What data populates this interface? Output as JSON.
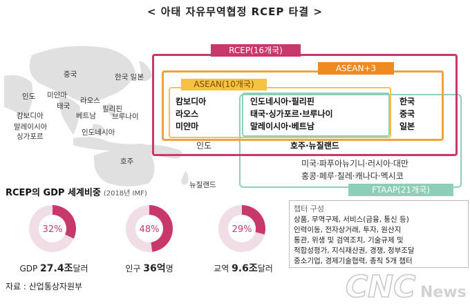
{
  "title": "< 아태 자유무역협정 RCEP 타결 >",
  "map_labels": {
    "china": "중국",
    "korea_japan": "한국 일본",
    "india": "인도",
    "myanmar": "미얀마",
    "laos": "라오스",
    "thailand": "태국",
    "philippines": "필리핀",
    "vietnam": "베트남",
    "brunei": "브루나이",
    "cambodia": "캄보디아",
    "malaysia": "말레이시아",
    "singapore": "싱가포르",
    "indonesia": "인도네시아",
    "australia": "호주",
    "new_zealand": "뉴질랜드"
  },
  "groups": {
    "rcep_label": "RCEP(16개국)",
    "asean3_label": "ASEAN+3",
    "asean_label": "ASEAN(10개국)",
    "ftaap_label": "FTAAP(21개국)"
  },
  "members": {
    "asean_left": [
      "캄보디아",
      "라오스",
      "미얀마"
    ],
    "asean_ftaap": [
      "인도네시아·필리핀",
      "태국·싱가포르·브루나이",
      "말레이시아·베트남"
    ],
    "plus3": [
      "한국",
      "중국",
      "일본"
    ],
    "india": "인도",
    "aus_nz": "호주·뉴질랜드",
    "ftaap_only": [
      "미국·파푸아뉴기니·러시아·대만",
      "홍콩·페루·칠레·캐나다·멕시코"
    ]
  },
  "gdp_section": {
    "title": "RCEP의 GDP 세계비중",
    "year_note": "(2018년 IMF)"
  },
  "donuts": [
    {
      "percent": 32,
      "label": "32%",
      "caption_prefix": "GDP ",
      "caption_value": "27.4조",
      "caption_suffix": "달러"
    },
    {
      "percent": 48,
      "label": "48%",
      "caption_prefix": "인구 ",
      "caption_value": "36억",
      "caption_suffix": "명"
    },
    {
      "percent": 29,
      "label": "29%",
      "caption_prefix": "교역 ",
      "caption_value": "9.6조",
      "caption_suffix": "달러"
    }
  ],
  "chapter": {
    "title": "챕터 구성",
    "lines": [
      "상품, 무역구제, 서비스(금융, 통신 등)",
      "인력이동, 전자상거래, 투자, 원산지",
      "통관, 위생 및 검역조치, 기술규제 및",
      "적합성평가, 지식재산권, 경쟁, 정부조달",
      "중소기업, 경제기술협력, 총칙 5개 챕터"
    ]
  },
  "source": "자료 : 산업통상자원부",
  "watermark": {
    "main": "CNC",
    "sub": "News"
  },
  "colors": {
    "rcep": "#c8386a",
    "asean3": "#ee8a1f",
    "asean": "#f5c242",
    "ftaap": "#8ccfb6",
    "donut_fill": "#c8386a",
    "donut_rest": "#f1dde5"
  }
}
